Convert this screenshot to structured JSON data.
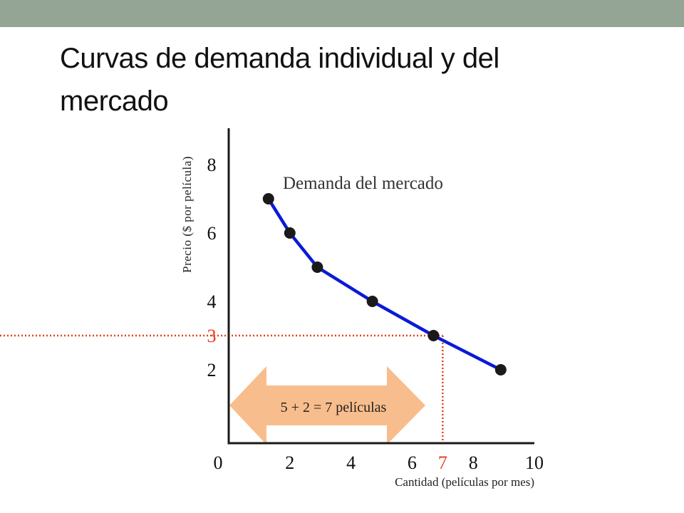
{
  "slide": {
    "title": "Curvas de demanda individual y del mercado"
  },
  "colors": {
    "top_bar": "#95a595",
    "curve": "#0a1ad8",
    "point": "#1a1a1a",
    "axis": "#1a1a1a",
    "highlight": "#e8401c",
    "arrow_fill": "#f8bd8c"
  },
  "chart_data": {
    "type": "line",
    "title": "",
    "series": [
      {
        "name": "Demanda del mercado",
        "x": [
          1.3,
          2,
          2.9,
          4.7,
          6.7,
          8.9
        ],
        "y": [
          7,
          6,
          5,
          4,
          3,
          2
        ]
      }
    ],
    "xlabel": "Cantidad (películas por mes)",
    "ylabel": "Precio ($ por película)",
    "xlim": [
      0,
      10
    ],
    "ylim": [
      0,
      9
    ],
    "x_ticks": [
      0,
      2,
      4,
      6,
      7,
      8,
      10
    ],
    "y_ticks": [
      2,
      3,
      4,
      6,
      8
    ],
    "highlight": {
      "x": 7,
      "y": 3
    },
    "annotation": "5 + 2 = 7 películas",
    "grid": false
  }
}
